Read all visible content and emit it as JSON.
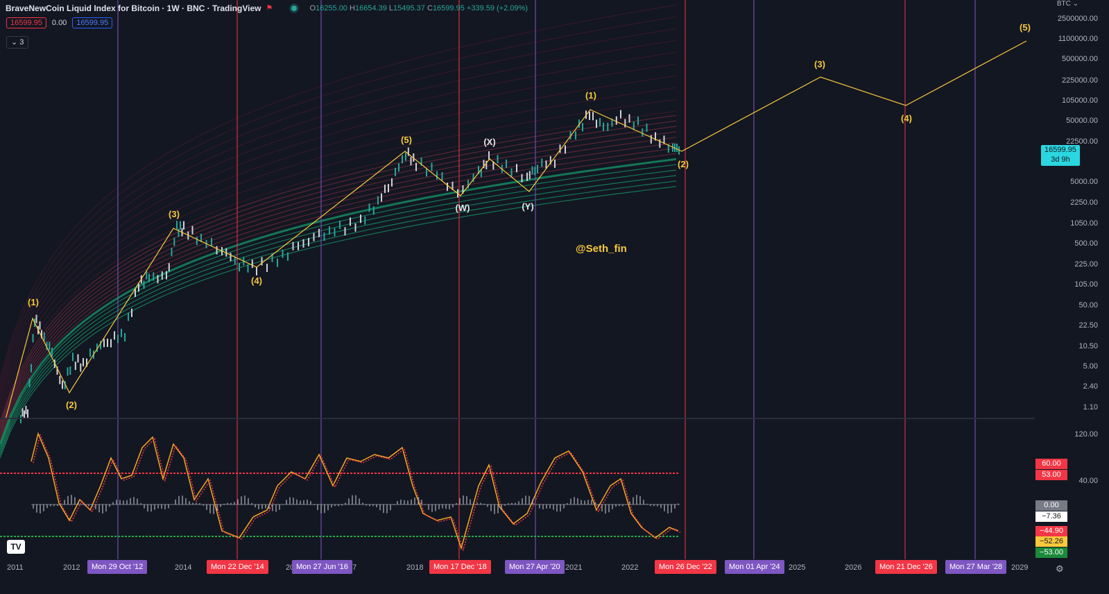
{
  "header": {
    "title": "BraveNewCoin Liquid Index for Bitcoin · 1W · BNC · TradingView",
    "open_label": "O",
    "open": "16255.00",
    "high_label": "H",
    "high": "16654.39",
    "low_label": "L",
    "low": "15495.37",
    "close_label": "C",
    "close": "16599.95",
    "change": "+339.59 (+2.09%)"
  },
  "toolbar": {
    "sell_price": "16599.95",
    "spread": "0.00",
    "buy_price": "16599.95",
    "collapse_count": "3"
  },
  "price_axis": {
    "currency": "BTC",
    "ticks": [
      "2500000.00",
      "1100000.00",
      "500000.00",
      "225000.00",
      "105000.00",
      "50000.00",
      "22500.00",
      "5000.00",
      "2250.00",
      "1050.00",
      "500.00",
      "225.00",
      "105.00",
      "50.00",
      "22.50",
      "10.50",
      "5.00",
      "2.40",
      "1.10"
    ],
    "last_price": "16599.95",
    "countdown": "3d 9h"
  },
  "osc_axis": {
    "ticks": [
      "120.00",
      "40.00"
    ],
    "tags": [
      {
        "value": "60.00",
        "color": "#f23645",
        "text": "#ffffff"
      },
      {
        "value": "53.00",
        "color": "#f23645",
        "text": "#ffffff"
      },
      {
        "value": "0.00",
        "color": "#787b86",
        "text": "#ffffff"
      },
      {
        "value": "−7.36",
        "color": "#ffffff",
        "text": "#131722"
      },
      {
        "value": "−44.90",
        "color": "#f23645",
        "text": "#ffffff"
      },
      {
        "value": "−52.26",
        "color": "#f9c93c",
        "text": "#131722"
      },
      {
        "value": "−53.00",
        "color": "#1b8a3a",
        "text": "#ffffff"
      }
    ]
  },
  "time_axis": {
    "years": [
      "2011",
      "2012",
      "2014",
      "20",
      "17",
      "2018",
      "2021",
      "2022",
      "2025",
      "2026",
      "2029"
    ],
    "date_labels": [
      {
        "text": "Mon 29 Oct '12",
        "kind": "purple"
      },
      {
        "text": "Mon 22 Dec '14",
        "kind": "red"
      },
      {
        "text": "Mon 27 Jun '16",
        "kind": "purple"
      },
      {
        "text": "Mon 17 Dec '18",
        "kind": "red"
      },
      {
        "text": "Mon 27 Apr '20",
        "kind": "purple"
      },
      {
        "text": "Mon 26 Dec '22",
        "kind": "red"
      },
      {
        "text": "Mon 01 Apr '24",
        "kind": "purple"
      },
      {
        "text": "Mon 21 Dec '26",
        "kind": "red"
      },
      {
        "text": "Mon 27 Mar '28",
        "kind": "purple"
      }
    ]
  },
  "annotations": [
    {
      "text": "(1)",
      "color": "yellow"
    },
    {
      "text": "(2)",
      "color": "yellow"
    },
    {
      "text": "(3)",
      "color": "yellow"
    },
    {
      "text": "(4)",
      "color": "yellow"
    },
    {
      "text": "(5)",
      "color": "yellow"
    },
    {
      "text": "(W)",
      "color": "white"
    },
    {
      "text": "(X)",
      "color": "white"
    },
    {
      "text": "(Y)",
      "color": "white"
    },
    {
      "text": "(1)",
      "color": "yellow"
    },
    {
      "text": "(2)",
      "color": "yellow"
    },
    {
      "text": "(3)",
      "color": "yellow"
    },
    {
      "text": "(4)",
      "color": "yellow"
    },
    {
      "text": "(5)",
      "color": "yellow"
    }
  ],
  "watermark": "@Seth_fin",
  "logo_text": "TV",
  "colors": {
    "bg": "#131722",
    "up": "#26a69a",
    "down": "#f23645",
    "wave": "#f9c93c",
    "cycle_red": "#f23645",
    "cycle_purple": "#7e57c2"
  }
}
